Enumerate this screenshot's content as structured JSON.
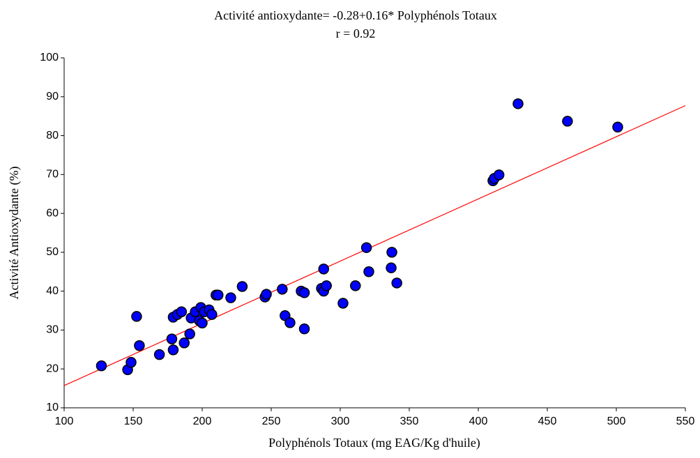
{
  "chart_data": {
    "type": "scatter",
    "title": "Activité antioxydante= -0.28+0.16* Polyphénols Totaux",
    "subtitle": "r = 0.92",
    "x_label": "Polyphénols Totaux (mg EAG/Kg d'huile)",
    "y_label": "Activité Antioxydante (%)",
    "xlim": [
      100,
      550
    ],
    "ylim": [
      10,
      100
    ],
    "xticks": [
      100,
      150,
      200,
      250,
      300,
      350,
      400,
      450,
      500,
      550
    ],
    "yticks": [
      10,
      20,
      30,
      40,
      50,
      60,
      70,
      80,
      90,
      100
    ],
    "series": [
      {
        "color": "#0000ff",
        "x": [
          127,
          146,
          148.5,
          152.5,
          154.5,
          169,
          178,
          179,
          179,
          182,
          185,
          187,
          191,
          192,
          195,
          198,
          199,
          200,
          201.5,
          205,
          207,
          210,
          211.5,
          220.7,
          229,
          245.5,
          246.5,
          258,
          260,
          263.6,
          271.7,
          274,
          274,
          288,
          286.4,
          288,
          290,
          302,
          311,
          319,
          320.7,
          337.4,
          336.9,
          341,
          410.6,
          411.6,
          415,
          428.8,
          464.6,
          501
        ],
        "values": [
          20.8,
          19.8,
          21.7,
          33.5,
          26,
          23.7,
          27.7,
          24.9,
          33.3,
          34,
          34.7,
          26.7,
          29,
          33.1,
          34.7,
          32.4,
          35.8,
          31.8,
          34.7,
          35.2,
          34,
          39,
          39,
          38.3,
          41.2,
          38.5,
          39.2,
          40.5,
          33.7,
          31.9,
          40,
          39.6,
          30.3,
          45.7,
          40.7,
          40,
          41.4,
          36.9,
          41.4,
          51.2,
          45,
          50,
          46,
          42.1,
          68.4,
          69,
          69.9,
          88.2,
          83.7,
          82.2
        ]
      }
    ],
    "regression_line": {
      "intercept": -0.28,
      "slope": 0.16,
      "color": "#ff0000"
    }
  }
}
